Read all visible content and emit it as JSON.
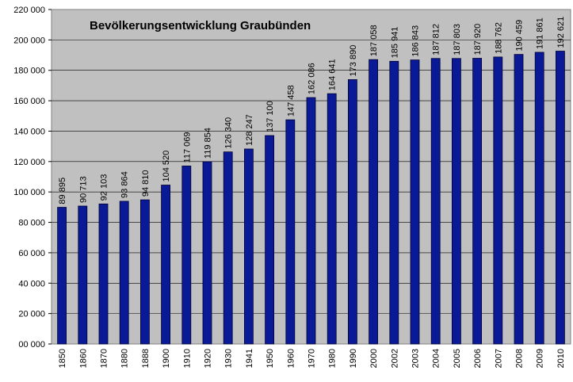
{
  "chart_data": {
    "type": "bar",
    "title": "Bevölkerungsentwicklung Graubünden",
    "categories": [
      "1850",
      "1860",
      "1870",
      "1880",
      "1888",
      "1900",
      "1910",
      "1920",
      "1930",
      "1941",
      "1950",
      "1960",
      "1970",
      "1980",
      "1990",
      "2000",
      "2002",
      "2003",
      "2004",
      "2005",
      "2006",
      "2007",
      "2008",
      "2009",
      "2010"
    ],
    "values": [
      89895,
      90713,
      92103,
      93864,
      94810,
      104520,
      117069,
      119854,
      126340,
      128247,
      137100,
      147458,
      162086,
      164641,
      173890,
      187058,
      185941,
      186843,
      187812,
      187803,
      187920,
      188762,
      190459,
      191861,
      192621
    ],
    "value_labels": [
      "89 895",
      "90 713",
      "92 103",
      "93 864",
      "94 810",
      "104 520",
      "117 069",
      "119 854",
      "126 340",
      "128 247",
      "137 100",
      "147 458",
      "162 086",
      "164 641",
      "173 890",
      "187 058",
      "185 941",
      "186 843",
      "187 812",
      "187 803",
      "187 920",
      "188 762",
      "190 459",
      "191 861",
      "192 621"
    ],
    "ylim": [
      0,
      220000
    ],
    "yticks": [
      0,
      20000,
      40000,
      60000,
      80000,
      100000,
      120000,
      140000,
      160000,
      180000,
      200000,
      220000
    ],
    "ytick_labels": [
      "00 000",
      "20 000",
      "40 000",
      "60 000",
      "80 000",
      "100 000",
      "120 000",
      "140 000",
      "160 000",
      "180 000",
      "200 000",
      "220 000"
    ],
    "grid": true,
    "colors": {
      "bar": "#0a1a96",
      "bar_edge": "#000033",
      "plot_bg": "#c0c0c0",
      "grid": "#000000"
    }
  }
}
